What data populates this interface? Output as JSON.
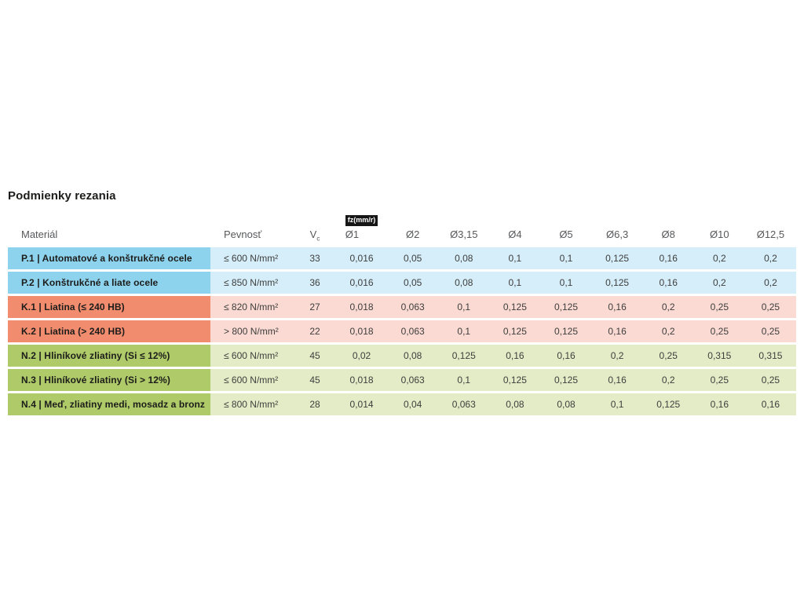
{
  "page": {
    "title": "Podmienky rezania"
  },
  "table": {
    "headers": {
      "material": "Materiál",
      "strength": "Pevnosť",
      "vc_main": "V",
      "vc_sub": "c",
      "fz_badge": "fz(mm/r)",
      "diameters": [
        "Ø1",
        "Ø2",
        "Ø3,15",
        "Ø4",
        "Ø5",
        "Ø6,3",
        "Ø8",
        "Ø10",
        "Ø12,5"
      ]
    },
    "colors": {
      "p_dark": "#8ED3ED",
      "p_light": "#D6EEF9",
      "k_dark": "#F28C6E",
      "k_light": "#FADAD2",
      "n_dark": "#AFCB69",
      "n_light": "#E3ECC7"
    },
    "rows": [
      {
        "id": "p1",
        "group": "P",
        "material": "P.1 | Automatové a konštrukčné ocele",
        "strength": "≤ 600 N/mm²",
        "vc": "33",
        "fz": [
          "0,016",
          "0,05",
          "0,08",
          "0,1",
          "0,1",
          "0,125",
          "0,16",
          "0,2",
          "0,2"
        ]
      },
      {
        "id": "p2",
        "group": "P",
        "material": "P.2 | Konštrukčné a liate ocele",
        "strength": "≤ 850 N/mm²",
        "vc": "36",
        "fz": [
          "0,016",
          "0,05",
          "0,08",
          "0,1",
          "0,1",
          "0,125",
          "0,16",
          "0,2",
          "0,2"
        ]
      },
      {
        "id": "k1",
        "group": "K",
        "material": "K.1 | Liatina (≤ 240 HB)",
        "strength": "≤ 820 N/mm²",
        "vc": "27",
        "fz": [
          "0,018",
          "0,063",
          "0,1",
          "0,125",
          "0,125",
          "0,16",
          "0,2",
          "0,25",
          "0,25"
        ]
      },
      {
        "id": "k2",
        "group": "K",
        "material": "K.2 | Liatina (> 240 HB)",
        "strength": "> 800 N/mm²",
        "vc": "22",
        "fz": [
          "0,018",
          "0,063",
          "0,1",
          "0,125",
          "0,125",
          "0,16",
          "0,2",
          "0,25",
          "0,25"
        ]
      },
      {
        "id": "n2",
        "group": "N",
        "material": "N.2 | Hliníkové zliatiny (Si ≤ 12%)",
        "strength": "≤ 600 N/mm²",
        "vc": "45",
        "fz": [
          "0,02",
          "0,08",
          "0,125",
          "0,16",
          "0,16",
          "0,2",
          "0,25",
          "0,315",
          "0,315"
        ]
      },
      {
        "id": "n3",
        "group": "N",
        "material": "N.3 | Hliníkové zliatiny (Si > 12%)",
        "strength": "≤ 600 N/mm²",
        "vc": "45",
        "fz": [
          "0,018",
          "0,063",
          "0,1",
          "0,125",
          "0,125",
          "0,16",
          "0,2",
          "0,25",
          "0,25"
        ]
      },
      {
        "id": "n4",
        "group": "N",
        "material": "N.4 | Meď, zliatiny medi, mosadz a bronz",
        "strength": "≤ 800 N/mm²",
        "vc": "28",
        "fz": [
          "0,014",
          "0,04",
          "0,063",
          "0,08",
          "0,08",
          "0,1",
          "0,125",
          "0,16",
          "0,16"
        ]
      }
    ]
  }
}
